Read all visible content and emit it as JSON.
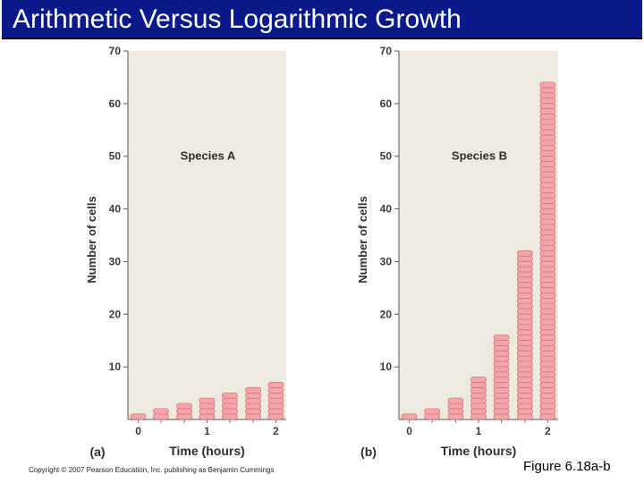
{
  "slide": {
    "title": "Arithmetic Versus Logarithmic Growth",
    "copyright": "Copyright © 2007 Pearson Education, Inc. publishing as Benjamin Cummings",
    "figure_label": "Figure 6.18a-b"
  },
  "colors": {
    "title_background": "#0a1a8a",
    "plot_background": "#eeeae0",
    "cell_fill": "#f2a6aa",
    "cell_stroke": "#d86c74"
  },
  "chart_data": [
    {
      "type": "bar",
      "panel_label": "(a)",
      "series_label": "Species A",
      "xlabel": "Time (hours)",
      "ylabel": "Number of cells",
      "x_ticks": [
        0,
        1,
        2
      ],
      "y_ticks": [
        10,
        20,
        30,
        40,
        50,
        60,
        70
      ],
      "xlim": [
        -0.15,
        2.15
      ],
      "ylim": [
        0,
        70
      ],
      "x": [
        0,
        0.33,
        0.67,
        1,
        1.33,
        1.67,
        2
      ],
      "values": [
        1,
        2,
        3,
        4,
        5,
        6,
        7
      ]
    },
    {
      "type": "bar",
      "panel_label": "(b)",
      "series_label": "Species B",
      "xlabel": "Time (hours)",
      "ylabel": "Number of cells",
      "x_ticks": [
        0,
        1,
        2
      ],
      "y_ticks": [
        10,
        20,
        30,
        40,
        50,
        60,
        70
      ],
      "xlim": [
        -0.15,
        2.15
      ],
      "ylim": [
        0,
        70
      ],
      "x": [
        0,
        0.33,
        0.67,
        1,
        1.33,
        1.67,
        2
      ],
      "values": [
        1,
        2,
        4,
        8,
        16,
        32,
        64
      ]
    }
  ]
}
